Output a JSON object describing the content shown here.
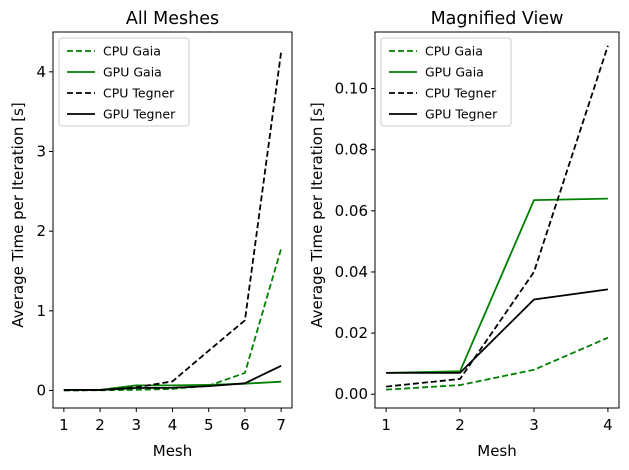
{
  "chart_data": [
    {
      "type": "line",
      "title": "All Meshes",
      "xlabel": "Mesh",
      "ylabel": "Average Time per Iteration [s]",
      "xlim": [
        0.7,
        7.3
      ],
      "ylim": [
        -0.22,
        4.5
      ],
      "x": [
        1,
        2,
        3,
        4,
        5,
        6,
        7
      ],
      "xticks": [
        1,
        2,
        3,
        4,
        5,
        6,
        7
      ],
      "yticks": [
        0,
        1,
        2,
        3,
        4
      ],
      "grid": false,
      "legend_position": "top-left",
      "series": [
        {
          "name": "CPU Gaia",
          "color": "#008000",
          "style": "dashed",
          "values": [
            0.0015,
            0.003,
            0.008,
            0.02,
            0.06,
            0.22,
            1.78
          ]
        },
        {
          "name": "GPU Gaia",
          "color": "#008000",
          "style": "solid",
          "values": [
            0.007,
            0.0075,
            0.064,
            0.064,
            0.07,
            0.085,
            0.11
          ]
        },
        {
          "name": "CPU Tegner",
          "color": "#000000",
          "style": "dashed",
          "values": [
            0.0025,
            0.005,
            0.04,
            0.114,
            0.5,
            0.88,
            4.25
          ]
        },
        {
          "name": "GPU Tegner",
          "color": "#000000",
          "style": "solid",
          "values": [
            0.007,
            0.007,
            0.031,
            0.034,
            0.055,
            0.09,
            0.31
          ]
        }
      ]
    },
    {
      "type": "line",
      "title": "Magnified View",
      "xlabel": "Mesh",
      "ylabel": "Average Time per Iteration [s]",
      "xlim": [
        0.85,
        4.15
      ],
      "ylim": [
        -0.0045,
        0.1185
      ],
      "x": [
        1,
        2,
        3,
        4
      ],
      "xticks": [
        1,
        2,
        3,
        4
      ],
      "yticks": [
        0.0,
        0.02,
        0.04,
        0.06,
        0.08,
        0.1
      ],
      "ytick_labels": [
        "0.00",
        "0.02",
        "0.04",
        "0.06",
        "0.08",
        "0.10"
      ],
      "grid": false,
      "legend_position": "top-left",
      "series": [
        {
          "name": "CPU Gaia",
          "color": "#008000",
          "style": "dashed",
          "values": [
            0.0015,
            0.003,
            0.008,
            0.0185
          ]
        },
        {
          "name": "GPU Gaia",
          "color": "#008000",
          "style": "solid",
          "values": [
            0.007,
            0.0075,
            0.0635,
            0.064
          ]
        },
        {
          "name": "CPU Tegner",
          "color": "#000000",
          "style": "dashed",
          "values": [
            0.0025,
            0.005,
            0.04,
            0.114
          ]
        },
        {
          "name": "GPU Tegner",
          "color": "#000000",
          "style": "solid",
          "values": [
            0.007,
            0.007,
            0.031,
            0.0343
          ]
        }
      ]
    }
  ]
}
